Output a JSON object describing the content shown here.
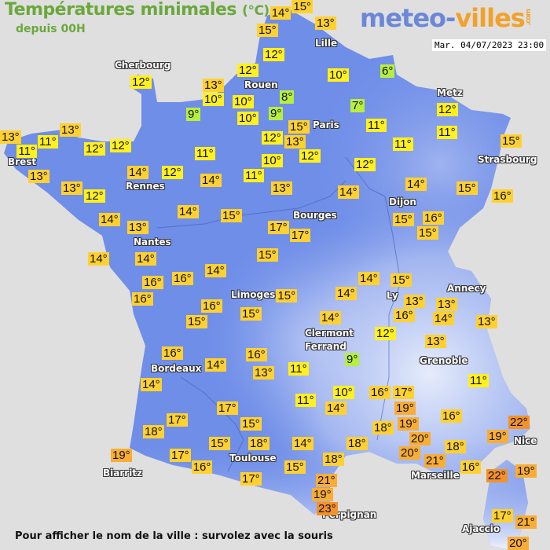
{
  "header": {
    "title": "Températures minimales",
    "unit": "(°C)",
    "subtitle": "depuis 00H",
    "logo": {
      "part1": "meteo-",
      "part2": "villes",
      "suffix": ".com"
    },
    "datetime": "Mar. 04/07/2023 23:00"
  },
  "footer": {
    "hint": "Pour afficher le nom de la ville : survolez avec la souris"
  },
  "colors": {
    "background": "#e0dfdf",
    "land": "#6f8ee8",
    "cold": "#b6ef3e",
    "cool": "#fff01e",
    "mild": "#fed131",
    "warm": "#f9ad34",
    "hot": "#f3922c"
  },
  "cities": [
    "Cherbourg",
    "Rouen",
    "Lille",
    "Paris",
    "Metz",
    "Strasbourg",
    "Brest",
    "Rennes",
    "Nantes",
    "Bourges",
    "Dijon",
    "Limoges",
    "Annecy",
    "Ly",
    "Clermont",
    "Ferrand",
    "Grenoble",
    "Bordeaux",
    "Toulouse",
    "Biarritz",
    "Marseille",
    "Nice",
    "Perpignan",
    "Ajaccio"
  ],
  "temperatures": [
    "14°",
    "15°",
    "15°",
    "13°",
    "12°",
    "12°",
    "13°",
    "10°",
    "10°",
    "10°",
    "9°",
    "8°",
    "9°",
    "10°",
    "6°",
    "7°",
    "15°",
    "13°",
    "12°",
    "12°",
    "10°",
    "11°",
    "11°",
    "12°",
    "12°",
    "11°",
    "15°",
    "14°",
    "15°",
    "16°",
    "14°",
    "13°",
    "11°",
    "14°",
    "11°",
    "12°",
    "12°",
    "12°",
    "13°",
    "13°",
    "11°",
    "11°",
    "13°",
    "13°",
    "12°",
    "14°",
    "12°",
    "14°",
    "13°",
    "14°",
    "15°",
    "17°",
    "17°",
    "15°",
    "16°",
    "15°",
    "14°",
    "14°",
    "15°",
    "14°",
    "16°",
    "16°",
    "16°",
    "14°",
    "15°",
    "13°",
    "16°",
    "13°",
    "14°",
    "13°",
    "15°",
    "14°",
    "16°",
    "15°",
    "15°",
    "14°",
    "12°",
    "13°",
    "9°",
    "16°",
    "14°",
    "16°",
    "13°",
    "11°",
    "14°",
    "11°",
    "10°",
    "14°",
    "16°",
    "17°",
    "19°",
    "19°",
    "16°",
    "11°",
    "18°",
    "17°",
    "15°",
    "17°",
    "18°",
    "15°",
    "18°",
    "14°",
    "18°",
    "20°",
    "20°",
    "21°",
    "18°",
    "16°",
    "22°",
    "19°",
    "19°",
    "22°",
    "19°",
    "17°",
    "16°",
    "17°",
    "15°",
    "18°",
    "21°",
    "19°",
    "23°",
    "17°",
    "21°",
    "20°"
  ]
}
